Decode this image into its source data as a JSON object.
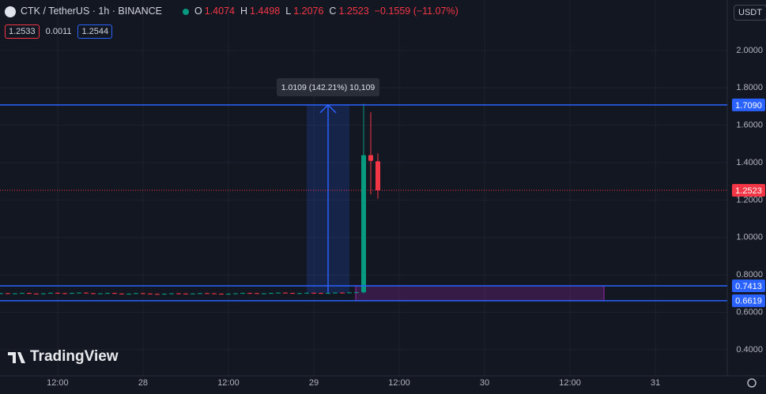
{
  "header": {
    "symbol": "CTK / TetherUS · 1h · BINANCE",
    "o_label": "O",
    "o": "1.4074",
    "h_label": "H",
    "h": "1.4498",
    "l_label": "L",
    "l": "1.2076",
    "c_label": "C",
    "c": "1.2523",
    "change": "−0.1559 (−11.07%)",
    "currency": "USDT"
  },
  "order": {
    "sell": "1.2533",
    "spread": "0.0011",
    "buy": "1.2544"
  },
  "brand": "TradingView",
  "chart_data": {
    "type": "candlestick",
    "categories": [
      null,
      null,
      null,
      null,
      null,
      null,
      null,
      null,
      null,
      null,
      null,
      null,
      null,
      null,
      null,
      null,
      null,
      null,
      null,
      null,
      null,
      null,
      null,
      null,
      null,
      null,
      null,
      null,
      null,
      null,
      null,
      null,
      null,
      null,
      null,
      null,
      null,
      null,
      null,
      null,
      null,
      null,
      null,
      null,
      null,
      null,
      null,
      null,
      null,
      null,
      null,
      null,
      null,
      null
    ],
    "open": [
      0.7,
      0.702,
      0.699,
      0.701,
      0.703,
      0.7,
      0.698,
      0.701,
      0.704,
      0.702,
      0.7,
      0.703,
      0.705,
      0.702,
      0.699,
      0.701,
      0.703,
      0.7,
      0.697,
      0.699,
      0.702,
      0.7,
      0.698,
      0.696,
      0.699,
      0.701,
      0.7,
      0.698,
      0.7,
      0.702,
      0.701,
      0.699,
      0.697,
      0.699,
      0.701,
      0.703,
      0.702,
      0.7,
      0.701,
      0.703,
      0.705,
      0.703,
      0.701,
      0.702,
      0.704,
      0.703,
      0.701,
      0.703,
      0.705,
      0.704,
      0.706,
      0.707,
      1.44,
      1.4074
    ],
    "close": [
      0.702,
      0.699,
      0.701,
      0.703,
      0.7,
      0.698,
      0.701,
      0.704,
      0.702,
      0.7,
      0.703,
      0.705,
      0.702,
      0.699,
      0.701,
      0.703,
      0.7,
      0.697,
      0.699,
      0.702,
      0.7,
      0.698,
      0.696,
      0.699,
      0.701,
      0.7,
      0.698,
      0.7,
      0.702,
      0.701,
      0.699,
      0.697,
      0.699,
      0.701,
      0.703,
      0.702,
      0.7,
      0.701,
      0.703,
      0.705,
      0.703,
      0.701,
      0.702,
      0.704,
      0.703,
      0.701,
      0.703,
      0.705,
      0.704,
      0.706,
      0.707,
      1.44,
      1.41,
      1.2523
    ],
    "high": [
      0.704,
      0.704,
      0.703,
      0.705,
      0.705,
      0.702,
      0.703,
      0.706,
      0.706,
      0.704,
      0.705,
      0.707,
      0.707,
      0.704,
      0.703,
      0.705,
      0.705,
      0.702,
      0.701,
      0.704,
      0.704,
      0.702,
      0.7,
      0.701,
      0.703,
      0.703,
      0.702,
      0.702,
      0.704,
      0.704,
      0.703,
      0.701,
      0.701,
      0.703,
      0.705,
      0.705,
      0.704,
      0.703,
      0.705,
      0.707,
      0.707,
      0.705,
      0.704,
      0.706,
      0.706,
      0.705,
      0.705,
      0.707,
      0.707,
      0.708,
      0.709,
      1.715,
      1.67,
      1.4498
    ],
    "low": [
      0.698,
      0.697,
      0.697,
      0.699,
      0.698,
      0.696,
      0.696,
      0.699,
      0.7,
      0.698,
      0.698,
      0.701,
      0.7,
      0.697,
      0.697,
      0.699,
      0.698,
      0.695,
      0.695,
      0.697,
      0.698,
      0.696,
      0.694,
      0.694,
      0.697,
      0.698,
      0.696,
      0.696,
      0.698,
      0.699,
      0.697,
      0.695,
      0.695,
      0.697,
      0.699,
      0.7,
      0.698,
      0.698,
      0.699,
      0.701,
      0.701,
      0.699,
      0.699,
      0.7,
      0.701,
      0.699,
      0.699,
      0.701,
      0.702,
      0.702,
      0.704,
      0.7,
      1.23,
      1.2076
    ],
    "up_color": "#089981",
    "down_color": "#f23645",
    "xlim": [
      -0.1,
      102.1
    ],
    "xticks": [
      {
        "value": 8,
        "label": "12:00"
      },
      {
        "value": 20,
        "label": "28"
      },
      {
        "value": 32,
        "label": "12:00"
      },
      {
        "value": 44,
        "label": "29"
      },
      {
        "value": 56,
        "label": "12:00"
      },
      {
        "value": 68,
        "label": "30"
      },
      {
        "value": 80,
        "label": "12:00"
      },
      {
        "value": 92,
        "label": "31"
      }
    ],
    "ylim": [
      0.26,
      2.27
    ],
    "yticks": [
      {
        "value": 0.4,
        "label": "0.4000"
      },
      {
        "value": 0.6,
        "label": "0.6000"
      },
      {
        "value": 0.8,
        "label": "0.8000"
      },
      {
        "value": 1.0,
        "label": "1.0000"
      },
      {
        "value": 1.2,
        "label": "1.2000"
      },
      {
        "value": 1.4,
        "label": "1.4000"
      },
      {
        "value": 1.6,
        "label": "1.6000"
      },
      {
        "value": 1.8,
        "label": "1.8000"
      },
      {
        "value": 2.0,
        "label": "2.0000"
      }
    ],
    "grid": true,
    "price_lines": [
      {
        "value": 1.709,
        "label": "1.7090",
        "color": "#2962ff"
      },
      {
        "value": 0.7413,
        "label": "0.7413",
        "color": "#2962ff"
      },
      {
        "value": 0.6619,
        "label": "0.6619",
        "color": "#2962ff"
      }
    ],
    "last_price": {
      "value": 1.2523,
      "label": "1.2523",
      "color": "#f23645"
    },
    "measure_label": "1.0109 (142.21%) 10,109"
  }
}
